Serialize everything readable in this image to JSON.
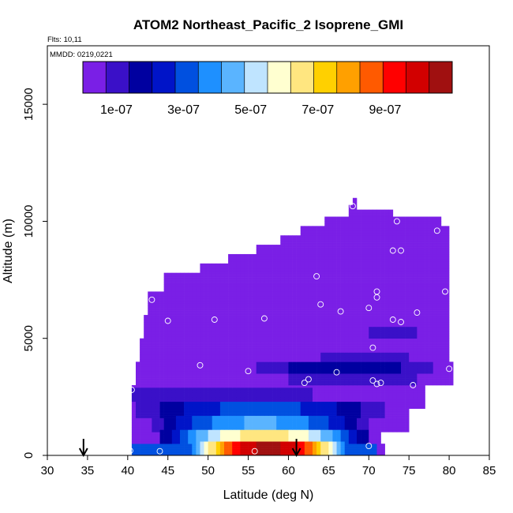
{
  "chart_data": {
    "type": "heatmap",
    "title": "ATOM2 Northeast_Pacific_2 Isoprene_GMI",
    "flights_label": "Flts: 10,11",
    "dates_label": "MMDD: 0219,0221",
    "xlabel": "Latitude (deg N)",
    "ylabel": "Altitude (m)",
    "xlim": [
      30,
      85
    ],
    "ylim": [
      0,
      17500
    ],
    "x_ticks": [
      30,
      35,
      40,
      45,
      50,
      55,
      60,
      65,
      70,
      75,
      80,
      85
    ],
    "y_ticks": [
      0,
      5000,
      10000,
      15000
    ],
    "colorbar": {
      "min": 0,
      "max": 1.1e-06,
      "tick_values": [
        1e-07,
        3e-07,
        5e-07,
        7e-07,
        9e-07
      ],
      "tick_labels": [
        "1e-07",
        "3e-07",
        "5e-07",
        "7e-07",
        "9e-07"
      ],
      "colors": [
        "#7a1fe6",
        "#3a10c8",
        "#0000a0",
        "#0014c8",
        "#0050e0",
        "#1e90ff",
        "#5ab4ff",
        "#bfe4ff",
        "#ffffd0",
        "#ffe680",
        "#ffd000",
        "#ffa000",
        "#ff5a00",
        "#ff0000",
        "#d20000",
        "#a01010"
      ]
    },
    "field_bounds": [
      {
        "ymax": 500,
        "xmin": 40.5,
        "xmax": 72
      },
      {
        "ymax": 1000,
        "xmin": 40.5,
        "xmax": 71.5
      },
      {
        "ymax": 2000,
        "xmin": 40.5,
        "xmax": 75
      },
      {
        "ymax": 3000,
        "xmin": 40.5,
        "xmax": 77
      },
      {
        "ymax": 4000,
        "xmin": 41,
        "xmax": 80.5
      },
      {
        "ymax": 5000,
        "xmin": 41.5,
        "xmax": 80
      },
      {
        "ymax": 6000,
        "xmin": 42,
        "xmax": 80
      },
      {
        "ymax": 7000,
        "xmin": 42.5,
        "xmax": 80
      },
      {
        "ymax": 7800,
        "xmin": 44.5,
        "xmax": 80
      },
      {
        "ymax": 8200,
        "xmin": 49,
        "xmax": 80
      },
      {
        "ymax": 8600,
        "xmin": 52.5,
        "xmax": 80
      },
      {
        "ymax": 9000,
        "xmin": 56,
        "xmax": 80
      },
      {
        "ymax": 9400,
        "xmin": 59,
        "xmax": 80
      },
      {
        "ymax": 9800,
        "xmin": 61.5,
        "xmax": 80
      },
      {
        "ymax": 10200,
        "xmin": 64.5,
        "xmax": 79
      },
      {
        "ymax": 10500,
        "xmin": 67.5,
        "xmax": 73
      },
      {
        "ymax": 10700,
        "xmin": 67.5,
        "xmax": 68.5
      },
      {
        "ymax": 11000,
        "xmin": 68,
        "xmax": 68.5
      }
    ],
    "features": [
      {
        "x0": 40.5,
        "x1": 71,
        "y0": 0,
        "y1": 500,
        "v": 3e-07,
        "shape": "flat"
      },
      {
        "x0": 47,
        "x1": 68,
        "y0": 0,
        "y1": 600,
        "v": 1.05e-06,
        "shape": "hump"
      },
      {
        "x0": 44,
        "x1": 70,
        "y0": 500,
        "y1": 1100,
        "v": 6.5e-07,
        "shape": "hump"
      },
      {
        "x0": 43,
        "x1": 70,
        "y0": 1000,
        "y1": 1700,
        "v": 4.2e-07,
        "shape": "hump"
      },
      {
        "x0": 41,
        "x1": 72,
        "y0": 1650,
        "y1": 2300,
        "v": 3e-07,
        "shape": "hump"
      },
      {
        "x0": 40.5,
        "x1": 63,
        "y0": 2300,
        "y1": 2900,
        "v": 1.2e-07,
        "shape": "flat"
      },
      {
        "x0": 60,
        "x1": 76,
        "y0": 3000,
        "y1": 3500,
        "v": 1.2e-07,
        "shape": "flat"
      },
      {
        "x0": 54,
        "x1": 80,
        "y0": 3500,
        "y1": 4000,
        "v": 1.8e-07,
        "shape": "hump"
      },
      {
        "x0": 64,
        "x1": 75,
        "y0": 4000,
        "y1": 4400,
        "v": 1e-07,
        "shape": "flat"
      },
      {
        "x0": 70,
        "x1": 76,
        "y0": 5000,
        "y1": 5500,
        "v": 1e-07,
        "shape": "flat"
      }
    ],
    "observation_points": [
      {
        "x": 40.3,
        "y": 200
      },
      {
        "x": 44.0,
        "y": 180
      },
      {
        "x": 55.8,
        "y": 180
      },
      {
        "x": 70.0,
        "y": 400
      },
      {
        "x": 40.5,
        "y": 2800
      },
      {
        "x": 49.0,
        "y": 3850
      },
      {
        "x": 55.0,
        "y": 3600
      },
      {
        "x": 62.0,
        "y": 3100
      },
      {
        "x": 62.5,
        "y": 3250
      },
      {
        "x": 66.0,
        "y": 3550
      },
      {
        "x": 70.5,
        "y": 3200
      },
      {
        "x": 71.0,
        "y": 3050
      },
      {
        "x": 71.5,
        "y": 3100
      },
      {
        "x": 75.5,
        "y": 3000
      },
      {
        "x": 80.0,
        "y": 3700
      },
      {
        "x": 70.5,
        "y": 4600
      },
      {
        "x": 45.0,
        "y": 5750
      },
      {
        "x": 50.8,
        "y": 5800
      },
      {
        "x": 57.0,
        "y": 5850
      },
      {
        "x": 73.0,
        "y": 5800
      },
      {
        "x": 74.0,
        "y": 5700
      },
      {
        "x": 43.0,
        "y": 6650
      },
      {
        "x": 64.0,
        "y": 6450
      },
      {
        "x": 66.5,
        "y": 6150
      },
      {
        "x": 70.0,
        "y": 6300
      },
      {
        "x": 71.0,
        "y": 6750
      },
      {
        "x": 71.0,
        "y": 7000
      },
      {
        "x": 76.0,
        "y": 6100
      },
      {
        "x": 79.5,
        "y": 7000
      },
      {
        "x": 63.5,
        "y": 7650
      },
      {
        "x": 73.0,
        "y": 8750
      },
      {
        "x": 74.0,
        "y": 8750
      },
      {
        "x": 78.5,
        "y": 9600
      },
      {
        "x": 73.5,
        "y": 10000
      },
      {
        "x": 68.0,
        "y": 10650
      }
    ],
    "arrows": [
      {
        "x": 34.5
      },
      {
        "x": 61.0
      }
    ]
  }
}
